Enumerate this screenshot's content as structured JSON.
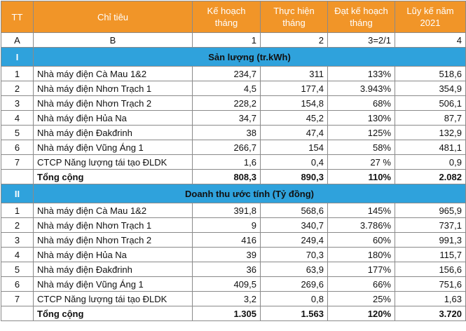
{
  "header": {
    "tt": "TT",
    "chitieu": "Chỉ tiêu",
    "kehoach": [
      "Kế hoạch",
      "tháng"
    ],
    "thuchien": [
      "Thực hiện",
      "tháng"
    ],
    "datkehoach": [
      "Đạt kế hoạch",
      "tháng"
    ],
    "luyke": [
      "Lũy kế năm",
      "2021"
    ]
  },
  "ref_row": [
    "A",
    "B",
    "1",
    "2",
    "3=2/1",
    "4"
  ],
  "sections": [
    {
      "roman": "I",
      "title": "Sản lượng (tr.kWh)",
      "rows": [
        {
          "tt": "1",
          "name": "Nhà máy điện Cà Mau 1&2",
          "plan": "234,7",
          "actual": "311",
          "pct": "133%",
          "ytd": "518,6"
        },
        {
          "tt": "2",
          "name": "Nhà máy điện Nhơn Trạch  1",
          "plan": "4,5",
          "actual": "177,4",
          "pct": "3.943%",
          "ytd": "354,9"
        },
        {
          "tt": "3",
          "name": "Nhà máy điện Nhơn Trạch  2",
          "plan": "228,2",
          "actual": "154,8",
          "pct": "68%",
          "ytd": "506,1"
        },
        {
          "tt": "4",
          "name": "Nhà máy điện Hủa Na",
          "plan": "34,7",
          "actual": "45,2",
          "pct": "130%",
          "ytd": "87,7"
        },
        {
          "tt": "5",
          "name": "Nhà máy điện Đakđrinh",
          "plan": "38",
          "actual": "47,4",
          "pct": "125%",
          "ytd": "132,9"
        },
        {
          "tt": "6",
          "name": "Nhà máy điện Vũng Áng 1",
          "plan": "266,7",
          "actual": "154",
          "pct": "58%",
          "ytd": "481,1"
        },
        {
          "tt": "7",
          "name": "CTCP Năng lượng tái tạo ĐLDK",
          "plan": "1,6",
          "actual": "0,4",
          "pct": "27 %",
          "ytd": "0,9"
        }
      ],
      "total": {
        "name": "Tổng cộng",
        "plan": "808,3",
        "actual": "890,3",
        "pct": "110%",
        "ytd": "2.082"
      }
    },
    {
      "roman": "II",
      "title": "Doanh thu ước tính (Tỷ đồng)",
      "rows": [
        {
          "tt": "1",
          "name": "Nhà máy điện Cà Mau 1&2",
          "plan": "391,8",
          "actual": "568,6",
          "pct": "145%",
          "ytd": "965,9"
        },
        {
          "tt": "2",
          "name": "Nhà máy điện Nhơn Trạch  1",
          "plan": "9",
          "actual": "340,7",
          "pct": "3.786%",
          "ytd": "737,1"
        },
        {
          "tt": "3",
          "name": "Nhà máy điện Nhơn Trạch  2",
          "plan": "416",
          "actual": "249,4",
          "pct": "60%",
          "ytd": "991,3"
        },
        {
          "tt": "4",
          "name": "Nhà máy điện Hủa Na",
          "plan": "39",
          "actual": "70,3",
          "pct": "180%",
          "ytd": "115,7"
        },
        {
          "tt": "5",
          "name": "Nhà máy điện Đakđrinh",
          "plan": "36",
          "actual": "63,9",
          "pct": "177%",
          "ytd": "156,6"
        },
        {
          "tt": "6",
          "name": "Nhà máy điện Vũng Áng 1",
          "plan": "409,5",
          "actual": "269,6",
          "pct": "66%",
          "ytd": "751,6"
        },
        {
          "tt": "7",
          "name": "CTCP Năng lượng tái tạo ĐLDK",
          "plan": "3,2",
          "actual": "0,8",
          "pct": "25%",
          "ytd": "1,63"
        }
      ],
      "total": {
        "name": "Tổng cộng",
        "plan": "1.305",
        "actual": "1.563",
        "pct": "120%",
        "ytd": "3.720"
      }
    }
  ]
}
